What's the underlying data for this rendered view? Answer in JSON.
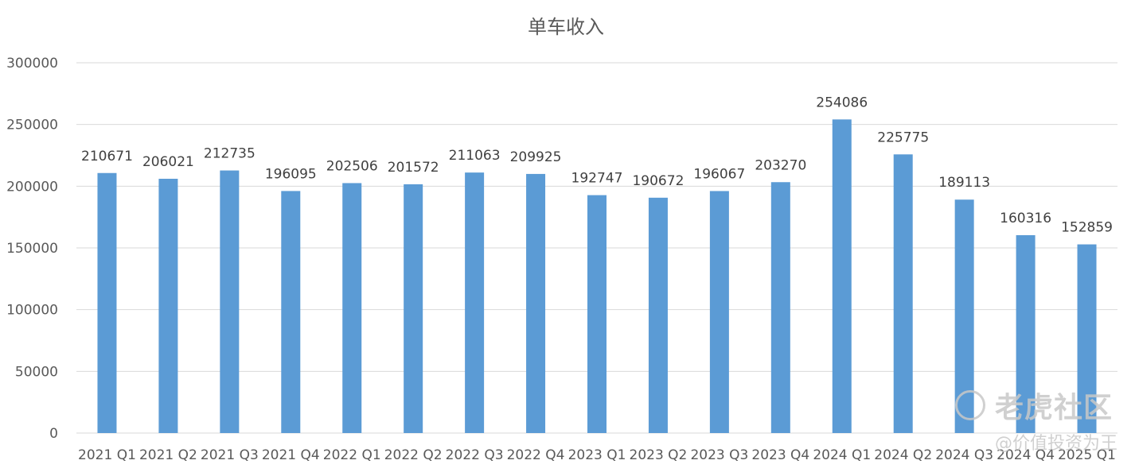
{
  "chart_data": {
    "type": "bar",
    "title": "单车收入",
    "xlabel": "",
    "ylabel": "",
    "ylim": [
      0,
      300000
    ],
    "yticks": [
      0,
      50000,
      100000,
      150000,
      200000,
      250000,
      300000
    ],
    "grid": true,
    "legend": "none",
    "bar_color": "#5b9bd5",
    "categories": [
      "2021 Q1",
      "2021 Q2",
      "2021 Q3",
      "2021 Q4",
      "2022 Q1",
      "2022 Q2",
      "2022 Q3",
      "2022 Q4",
      "2023 Q1",
      "2023 Q2",
      "2023 Q3",
      "2023 Q4",
      "2024 Q1",
      "2024 Q2",
      "2024 Q3",
      "2024 Q4",
      "2025 Q1"
    ],
    "values": [
      210671,
      206021,
      212735,
      196095,
      202506,
      201572,
      211063,
      209925,
      192747,
      190672,
      196067,
      203270,
      254086,
      225775,
      189113,
      160316,
      152859
    ]
  },
  "watermark": {
    "brand": "老虎社区",
    "user": "@价值投资为王"
  }
}
